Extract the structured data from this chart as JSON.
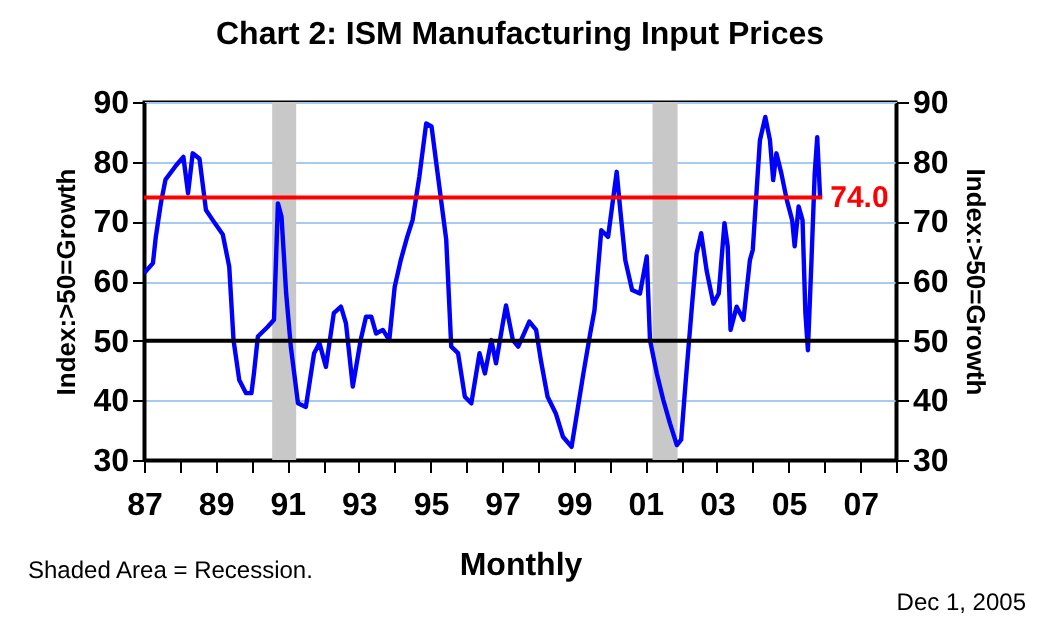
{
  "chart_data": {
    "type": "line",
    "title": "Chart 2: ISM Manufacturing Input Prices",
    "xlabel": "Monthly",
    "ylabel": "Index:>50=Growth",
    "y2label": "Index:>50=Growth",
    "annotations": [
      "Shaded Area = Recession.",
      "Dec 1, 2005"
    ],
    "series": [
      {
        "color": "#0000ff",
        "x": [
          1987.0,
          1987.25,
          1987.33,
          1987.47,
          1987.6,
          1987.9,
          1988.1,
          1988.23,
          1988.36,
          1988.55,
          1988.73,
          1988.92,
          1989.2,
          1989.38,
          1989.5,
          1989.66,
          1989.85,
          1990.0,
          1990.07,
          1990.18,
          1990.45,
          1990.63,
          1990.74,
          1990.84,
          1990.97,
          1991.1,
          1991.3,
          1991.52,
          1991.75,
          1991.9,
          1992.08,
          1992.3,
          1992.5,
          1992.64,
          1992.83,
          1993.05,
          1993.2,
          1993.35,
          1993.48,
          1993.67,
          1993.85,
          1994.0,
          1994.17,
          1994.35,
          1994.5,
          1994.69,
          1994.88,
          1995.03,
          1995.2,
          1995.44,
          1995.58,
          1995.77,
          1995.96,
          1996.14,
          1996.37,
          1996.52,
          1996.7,
          1996.83,
          1997.02,
          1997.11,
          1997.3,
          1997.45,
          1997.76,
          1997.95,
          1998.08,
          1998.27,
          1998.5,
          1998.7,
          1998.94,
          1999.12,
          1999.27,
          1999.46,
          1999.58,
          1999.77,
          1999.96,
          2000.2,
          2000.3,
          2000.44,
          2000.63,
          2000.85,
          2001.04,
          2001.13,
          2001.32,
          2001.5,
          2001.69,
          2001.88,
          2002.0,
          2002.13,
          2002.3,
          2002.43,
          2002.56,
          2002.71,
          2002.9,
          2003.05,
          2003.21,
          2003.3,
          2003.38,
          2003.55,
          2003.74,
          2003.92,
          2004.0,
          2004.2,
          2004.35,
          2004.48,
          2004.57,
          2004.66,
          2004.8,
          2004.95,
          2005.1,
          2005.17,
          2005.28,
          2005.39,
          2005.47,
          2005.54,
          2005.64,
          2005.73,
          2005.8,
          2005.88
        ],
        "values": [
          61.3,
          63,
          67.4,
          73,
          77,
          79.4,
          80.8,
          74.7,
          81.4,
          80.5,
          71.9,
          70.2,
          67.8,
          62.4,
          50.1,
          43.4,
          41.2,
          41.2,
          44.5,
          50.7,
          52.3,
          53.5,
          73,
          70.8,
          57.9,
          49,
          39.5,
          38.9,
          47.9,
          49.6,
          45.6,
          54.6,
          55.7,
          52.9,
          42.3,
          50.1,
          54,
          54,
          51.2,
          51.8,
          50.1,
          59,
          63.5,
          67.4,
          70.2,
          77.5,
          86.4,
          85.9,
          78,
          66.9,
          49,
          47.9,
          40.6,
          39.5,
          47.9,
          44.5,
          50.1,
          46.2,
          52.9,
          55.9,
          50.1,
          49,
          53.2,
          51.8,
          46.8,
          40.6,
          37.8,
          33.9,
          32.2,
          38.9,
          44.5,
          51.2,
          55.1,
          68.5,
          67.4,
          78.3,
          71.9,
          63.5,
          58.5,
          57.9,
          64.1,
          50.1,
          44.5,
          40.1,
          36.1,
          32.5,
          33.4,
          43.4,
          55.7,
          64.6,
          68,
          61.8,
          56.2,
          57.9,
          69.7,
          65.8,
          51.8,
          55.7,
          53.5,
          63.5,
          65.2,
          83.6,
          87.5,
          83.6,
          76.9,
          81.4,
          78,
          73.6,
          70.2,
          65.8,
          72.5,
          70.2,
          54.6,
          48.4,
          63.5,
          78,
          84.1,
          74.1
        ]
      }
    ],
    "xlim": [
      1987,
      2008
    ],
    "xticks": [
      {
        "value": 1987,
        "label": "87"
      },
      {
        "value": 1988,
        "label": null
      },
      {
        "value": 1989,
        "label": "89"
      },
      {
        "value": 1990,
        "label": null
      },
      {
        "value": 1991,
        "label": "91"
      },
      {
        "value": 1992,
        "label": null
      },
      {
        "value": 1993,
        "label": "93"
      },
      {
        "value": 1994,
        "label": null
      },
      {
        "value": 1995,
        "label": "95"
      },
      {
        "value": 1996,
        "label": null
      },
      {
        "value": 1997,
        "label": "97"
      },
      {
        "value": 1998,
        "label": null
      },
      {
        "value": 1999,
        "label": "99"
      },
      {
        "value": 2000,
        "label": null
      },
      {
        "value": 2001,
        "label": "01"
      },
      {
        "value": 2002,
        "label": null
      },
      {
        "value": 2003,
        "label": "03"
      },
      {
        "value": 2004,
        "label": null
      },
      {
        "value": 2005,
        "label": "05"
      },
      {
        "value": 2006,
        "label": null
      },
      {
        "value": 2007,
        "label": "07"
      },
      {
        "value": 2008,
        "label": null
      }
    ],
    "ylim": [
      30,
      90
    ],
    "yticks": [
      30,
      40,
      50,
      60,
      70,
      80,
      90
    ],
    "y2lim": [
      30,
      90
    ],
    "y2ticks": [
      30,
      40,
      50,
      60,
      70,
      80,
      90
    ],
    "grid": "y",
    "ref_lines": [
      {
        "axis": "y",
        "value": 50,
        "color": "#000000"
      },
      {
        "axis": "y",
        "value": 74,
        "label": "74.0",
        "color": "#ff0000"
      }
    ],
    "bands": [
      {
        "axis": "x",
        "from": 1990.58,
        "to": 1991.25,
        "color": "#c8c8c8"
      },
      {
        "axis": "x",
        "from": 2001.2,
        "to": 2001.9,
        "color": "#c8c8c8"
      }
    ]
  }
}
